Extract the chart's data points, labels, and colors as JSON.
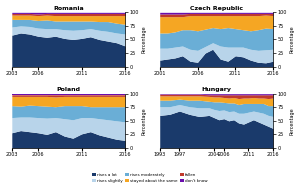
{
  "colors": {
    "rises_a_lot": "#1a3a6b",
    "rises_moderately": "#6aaed6",
    "rises_slightly": "#b8d4ea",
    "stayed_about_same": "#f5a623",
    "fallen": "#c0392b",
    "dont_know": "#6a0dad"
  },
  "romania": {
    "years": [
      2003,
      2004,
      2005,
      2006,
      2007,
      2008,
      2009,
      2010,
      2011,
      2012,
      2013,
      2014,
      2015,
      2016
    ],
    "rises_a_lot": [
      58,
      62,
      60,
      56,
      54,
      56,
      52,
      50,
      52,
      55,
      50,
      47,
      44,
      38
    ],
    "rises_slightly": [
      15,
      13,
      14,
      15,
      16,
      14,
      16,
      17,
      16,
      15,
      17,
      18,
      18,
      22
    ],
    "rises_moderately": [
      14,
      12,
      13,
      14,
      16,
      14,
      16,
      17,
      16,
      14,
      16,
      18,
      18,
      18
    ],
    "stayed_about_same": [
      8,
      8,
      8,
      9,
      9,
      10,
      10,
      10,
      10,
      10,
      11,
      11,
      14,
      16
    ],
    "fallen": [
      3,
      3,
      3,
      3,
      3,
      4,
      4,
      4,
      4,
      4,
      4,
      4,
      4,
      4
    ],
    "dont_know": [
      2,
      2,
      2,
      3,
      2,
      2,
      2,
      2,
      2,
      2,
      2,
      2,
      2,
      2
    ]
  },
  "czech_republic": {
    "years": [
      2001,
      2002,
      2003,
      2004,
      2005,
      2006,
      2007,
      2008,
      2009,
      2010,
      2011,
      2012,
      2013,
      2014,
      2015,
      2016
    ],
    "rises_a_lot": [
      12,
      14,
      16,
      20,
      10,
      8,
      25,
      32,
      14,
      10,
      20,
      18,
      12,
      8,
      7,
      10
    ],
    "rises_slightly": [
      22,
      20,
      20,
      18,
      22,
      22,
      12,
      12,
      24,
      26,
      16,
      18,
      20,
      22,
      24,
      22
    ],
    "rises_moderately": [
      28,
      28,
      28,
      30,
      36,
      36,
      32,
      28,
      32,
      36,
      34,
      32,
      34,
      38,
      40,
      38
    ],
    "stayed_about_same": [
      30,
      30,
      28,
      24,
      26,
      28,
      25,
      22,
      24,
      22,
      24,
      26,
      28,
      26,
      24,
      24
    ],
    "fallen": [
      5,
      5,
      5,
      5,
      4,
      4,
      4,
      4,
      4,
      4,
      4,
      4,
      4,
      4,
      3,
      4
    ],
    "dont_know": [
      3,
      3,
      3,
      3,
      2,
      2,
      2,
      2,
      2,
      2,
      2,
      2,
      2,
      2,
      2,
      2
    ]
  },
  "poland": {
    "years": [
      2003,
      2004,
      2005,
      2006,
      2007,
      2008,
      2009,
      2010,
      2011,
      2012,
      2013,
      2014,
      2015,
      2016
    ],
    "rises_a_lot": [
      28,
      32,
      30,
      28,
      25,
      30,
      22,
      18,
      26,
      30,
      24,
      20,
      16,
      14
    ],
    "rises_slightly": [
      28,
      25,
      27,
      28,
      30,
      26,
      32,
      34,
      30,
      26,
      30,
      32,
      34,
      34
    ],
    "rises_moderately": [
      22,
      20,
      22,
      22,
      22,
      20,
      24,
      26,
      22,
      20,
      22,
      24,
      26,
      28
    ],
    "stayed_about_same": [
      17,
      18,
      16,
      17,
      18,
      18,
      17,
      17,
      17,
      19,
      19,
      19,
      19,
      19
    ],
    "fallen": [
      3,
      3,
      3,
      3,
      3,
      4,
      3,
      3,
      3,
      3,
      3,
      3,
      3,
      3
    ],
    "dont_know": [
      2,
      2,
      2,
      2,
      2,
      2,
      2,
      2,
      2,
      2,
      2,
      2,
      2,
      2
    ]
  },
  "hungary": {
    "years": [
      1993,
      1995,
      1997,
      1999,
      2001,
      2003,
      2004,
      2005,
      2006,
      2007,
      2008,
      2009,
      2010,
      2011,
      2012,
      2013,
      2014,
      2015,
      2016
    ],
    "rises_a_lot": [
      60,
      62,
      68,
      62,
      58,
      60,
      56,
      52,
      54,
      50,
      52,
      46,
      44,
      48,
      52,
      48,
      44,
      40,
      36
    ],
    "rises_slightly": [
      16,
      14,
      12,
      14,
      16,
      14,
      15,
      17,
      16,
      17,
      16,
      18,
      20,
      18,
      16,
      18,
      20,
      20,
      22
    ],
    "rises_moderately": [
      12,
      12,
      10,
      12,
      14,
      12,
      14,
      16,
      14,
      16,
      15,
      16,
      18,
      16,
      14,
      16,
      18,
      18,
      20
    ],
    "stayed_about_same": [
      8,
      8,
      6,
      8,
      8,
      9,
      9,
      9,
      9,
      9,
      10,
      11,
      10,
      10,
      11,
      10,
      10,
      13,
      14
    ],
    "fallen": [
      3,
      3,
      3,
      3,
      3,
      3,
      4,
      4,
      5,
      6,
      5,
      7,
      6,
      6,
      5,
      6,
      6,
      7,
      6
    ],
    "dont_know": [
      1,
      1,
      1,
      1,
      1,
      2,
      2,
      2,
      2,
      2,
      2,
      2,
      2,
      2,
      2,
      2,
      2,
      2,
      2
    ]
  },
  "legend_labels": [
    "rises a lot",
    "rises slightly",
    "rises moderately",
    "stayed about the same",
    "fallen",
    "don't know"
  ],
  "legend_colors": [
    "#1a3a6b",
    "#b8d4ea",
    "#6aaed6",
    "#f5a623",
    "#c0392b",
    "#6a0dad"
  ],
  "ylabel": "Percentage",
  "yticks": [
    0,
    25,
    50,
    75,
    100
  ]
}
